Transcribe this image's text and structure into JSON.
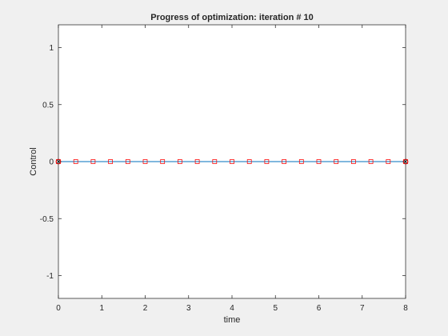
{
  "chart_data": {
    "type": "line",
    "title": "Progress of optimization: iteration # 10",
    "xlabel": "time",
    "ylabel": "Control",
    "xlim": [
      0,
      8
    ],
    "ylim": [
      -1.2,
      1.2
    ],
    "xticks": [
      0,
      1,
      2,
      3,
      4,
      5,
      6,
      7,
      8
    ],
    "xtick_labels": [
      "0",
      "1",
      "2",
      "3",
      "4",
      "5",
      "6",
      "7",
      "8"
    ],
    "yticks": [
      1,
      0.5,
      0,
      -0.5,
      -1
    ],
    "ytick_labels": [
      "1",
      "0.5",
      "0",
      "-0.5",
      "-1"
    ],
    "grid": false,
    "series": [
      {
        "color": "#0072bd",
        "style": "line",
        "x": [
          0,
          8
        ],
        "y": [
          0,
          0
        ]
      },
      {
        "color": "#ff0000",
        "marker": "circle",
        "x": [
          0,
          8
        ],
        "y": [
          0,
          0
        ]
      },
      {
        "color": "#000000",
        "marker": "x",
        "x": [
          0,
          8
        ],
        "y": [
          0,
          0
        ]
      },
      {
        "color": "#ff0000",
        "marker": "square",
        "x": [
          0,
          0.4,
          0.8,
          1.2,
          1.6,
          2.0,
          2.4,
          2.8,
          3.2,
          3.6,
          4.0,
          4.4,
          4.8,
          5.2,
          5.6,
          6.0,
          6.4,
          6.8,
          7.2,
          7.6,
          8.0
        ],
        "y": [
          0,
          0,
          0,
          0,
          0,
          0,
          0,
          0,
          0,
          0,
          0,
          0,
          0,
          0,
          0,
          0,
          0,
          0,
          0,
          0,
          0
        ]
      }
    ]
  }
}
